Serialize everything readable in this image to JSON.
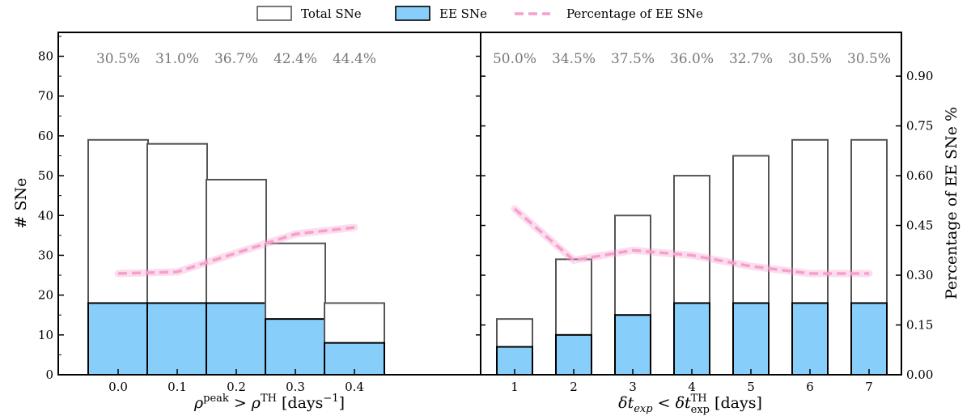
{
  "legend": {
    "total": "Total SNe",
    "ee": "EE SNe",
    "pct": "Percentage of EE SNe"
  },
  "colors": {
    "total_edge": "#555555",
    "ee_fill": "#87cefa",
    "ee_edge": "#000000",
    "pct_line": "#f79fcc",
    "pct_text": "#777777"
  },
  "axes": {
    "ylabel_left": "# SNe",
    "ylabel_right": "Percentage of EE SNe %",
    "left_ylim": [
      0,
      86
    ],
    "left_yticks": [
      0,
      10,
      20,
      30,
      40,
      50,
      60,
      70,
      80
    ],
    "right_ylim": [
      0,
      1.032
    ],
    "right_yticks": [
      "0.00",
      "0.15",
      "0.30",
      "0.45",
      "0.60",
      "0.75",
      "0.90"
    ]
  },
  "chart_data": [
    {
      "type": "bar",
      "categories": [
        "0.0",
        "0.1",
        "0.2",
        "0.3",
        "0.4"
      ],
      "series": [
        {
          "name": "Total SNe",
          "values": [
            59,
            58,
            49,
            33,
            18
          ]
        },
        {
          "name": "EE SNe",
          "values": [
            18,
            18,
            18,
            14,
            8
          ]
        },
        {
          "name": "Percentage of EE SNe",
          "values": [
            0.305,
            0.31,
            0.367,
            0.424,
            0.444
          ]
        }
      ],
      "annotations": [
        "30.5%",
        "31.0%",
        "36.7%",
        "42.4%",
        "44.4%"
      ],
      "xlabel": "ρ^peak > ρ^TH [days⁻¹]"
    },
    {
      "type": "bar",
      "categories": [
        "1",
        "2",
        "3",
        "4",
        "5",
        "6",
        "7"
      ],
      "series": [
        {
          "name": "Total SNe",
          "values": [
            14,
            29,
            40,
            50,
            55,
            59,
            59
          ]
        },
        {
          "name": "EE SNe",
          "values": [
            7,
            10,
            15,
            18,
            18,
            18,
            18
          ]
        },
        {
          "name": "Percentage of EE SNe",
          "values": [
            0.5,
            0.345,
            0.375,
            0.36,
            0.327,
            0.305,
            0.305
          ]
        }
      ],
      "annotations": [
        "50.0%",
        "34.5%",
        "37.5%",
        "36.0%",
        "32.7%",
        "30.5%",
        "30.5%"
      ],
      "xlabel": "δt_exp < δt_exp^TH [days]"
    }
  ]
}
